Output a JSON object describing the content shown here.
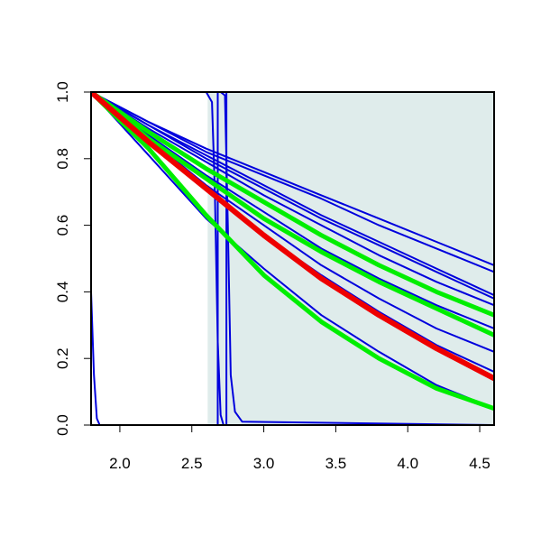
{
  "chart_data": {
    "type": "line",
    "title": "",
    "xlabel": "",
    "ylabel": "",
    "xlim": [
      1.8,
      4.6
    ],
    "ylim": [
      0.0,
      1.0
    ],
    "x_ticks": [
      2.0,
      2.5,
      3.0,
      3.5,
      4.0,
      4.5
    ],
    "x_tick_labels": [
      "2.0",
      "2.5",
      "3.0",
      "3.5",
      "4.0",
      "4.5"
    ],
    "y_ticks": [
      0.0,
      0.2,
      0.4,
      0.6,
      0.8,
      1.0
    ],
    "y_tick_labels": [
      "0.0",
      "0.2",
      "0.4",
      "0.6",
      "0.8",
      "1.0"
    ],
    "grid": false,
    "legend": "none",
    "shaded_region": {
      "x": [
        2.61,
        4.6
      ],
      "color": "#dfeceb"
    },
    "colors": {
      "blue": "#0000dd",
      "green": "#00ee00",
      "red": "#ee0000"
    },
    "series": [
      {
        "color": "blue",
        "x": [
          1.8,
          2.2,
          2.6,
          3.0,
          3.4,
          3.8,
          4.2,
          4.6
        ],
        "y": [
          1.0,
          0.91,
          0.83,
          0.76,
          0.69,
          0.62,
          0.55,
          0.48
        ]
      },
      {
        "color": "blue",
        "x": [
          1.8,
          2.2,
          2.6,
          3.0,
          3.4,
          3.8,
          4.2,
          4.6
        ],
        "y": [
          1.0,
          0.91,
          0.82,
          0.75,
          0.68,
          0.6,
          0.53,
          0.46
        ]
      },
      {
        "color": "blue",
        "x": [
          1.8,
          2.2,
          2.6,
          3.0,
          3.4,
          3.8,
          4.2,
          4.6
        ],
        "y": [
          1.0,
          0.9,
          0.81,
          0.72,
          0.63,
          0.55,
          0.47,
          0.39
        ]
      },
      {
        "color": "blue",
        "x": [
          1.8,
          2.2,
          2.6,
          3.0,
          3.4,
          3.8,
          4.2,
          4.6
        ],
        "y": [
          1.0,
          0.9,
          0.8,
          0.71,
          0.62,
          0.54,
          0.46,
          0.38
        ]
      },
      {
        "color": "blue",
        "x": [
          1.8,
          2.2,
          2.6,
          3.0,
          3.4,
          3.8,
          4.2,
          4.6
        ],
        "y": [
          1.0,
          0.89,
          0.79,
          0.69,
          0.6,
          0.51,
          0.43,
          0.36
        ]
      },
      {
        "color": "blue",
        "x": [
          1.8,
          2.2,
          2.6,
          3.0,
          3.4,
          3.8,
          4.2,
          4.6
        ],
        "y": [
          1.0,
          0.88,
          0.77,
          0.67,
          0.57,
          0.48,
          0.4,
          0.33
        ]
      },
      {
        "color": "blue",
        "x": [
          1.8,
          2.2,
          2.6,
          3.0,
          3.4,
          3.8,
          4.2,
          4.6
        ],
        "y": [
          1.0,
          0.87,
          0.75,
          0.64,
          0.53,
          0.44,
          0.36,
          0.29
        ]
      },
      {
        "color": "blue",
        "x": [
          1.8,
          2.2,
          2.6,
          3.0,
          3.4,
          3.8,
          4.2,
          4.6
        ],
        "y": [
          1.0,
          0.86,
          0.72,
          0.6,
          0.48,
          0.38,
          0.29,
          0.22
        ]
      },
      {
        "color": "blue",
        "x": [
          1.8,
          2.2,
          2.6,
          3.0,
          3.4,
          3.8,
          4.2,
          4.6
        ],
        "y": [
          1.0,
          0.85,
          0.71,
          0.57,
          0.45,
          0.34,
          0.24,
          0.16
        ]
      },
      {
        "color": "blue",
        "x": [
          1.8,
          2.2,
          2.6,
          3.0,
          3.4,
          3.8,
          4.2,
          4.6
        ],
        "y": [
          1.0,
          0.81,
          0.62,
          0.47,
          0.33,
          0.22,
          0.12,
          0.05
        ]
      },
      {
        "color": "blue",
        "x": [
          1.8,
          1.82,
          1.84,
          1.86,
          4.6
        ],
        "y": [
          0.4,
          0.15,
          0.02,
          0.0,
          0.0
        ]
      },
      {
        "color": "blue",
        "x": [
          1.8,
          2.6,
          2.64,
          2.66,
          2.68,
          2.7,
          2.72,
          4.6
        ],
        "y": [
          1.0,
          1.0,
          0.97,
          0.7,
          0.25,
          0.03,
          0.0,
          0.0
        ]
      },
      {
        "color": "blue",
        "x": [
          1.8,
          2.65,
          2.68,
          2.68,
          2.7,
          2.7,
          4.6
        ],
        "y": [
          1.0,
          1.0,
          1.0,
          0.0,
          0.0,
          0.0,
          0.0
        ]
      },
      {
        "color": "blue",
        "x": [
          1.8,
          2.7,
          2.73,
          2.75,
          2.77,
          2.8,
          2.85,
          4.6
        ],
        "y": [
          1.0,
          1.0,
          0.99,
          0.6,
          0.15,
          0.04,
          0.01,
          0.0
        ]
      },
      {
        "color": "blue",
        "x": [
          1.8,
          2.74,
          2.74,
          2.76,
          4.6
        ],
        "y": [
          1.0,
          1.0,
          0.0,
          0.0,
          0.0
        ]
      },
      {
        "color": "green",
        "x": [
          1.8,
          2.2,
          2.6,
          3.0,
          3.4,
          3.8,
          4.2,
          4.6
        ],
        "y": [
          1.0,
          0.88,
          0.77,
          0.67,
          0.57,
          0.48,
          0.4,
          0.33
        ]
      },
      {
        "color": "green",
        "x": [
          1.8,
          2.2,
          2.6,
          3.0,
          3.4,
          3.8,
          4.2,
          4.6
        ],
        "y": [
          1.0,
          0.86,
          0.74,
          0.62,
          0.52,
          0.43,
          0.35,
          0.27
        ]
      },
      {
        "color": "green",
        "x": [
          1.8,
          2.2,
          2.6,
          3.0,
          3.4,
          3.8,
          4.2,
          4.6
        ],
        "y": [
          1.0,
          0.83,
          0.63,
          0.45,
          0.31,
          0.2,
          0.11,
          0.05
        ]
      },
      {
        "color": "red",
        "x": [
          1.8,
          2.2,
          2.6,
          3.0,
          3.4,
          3.8,
          4.2,
          4.6
        ],
        "y": [
          1.0,
          0.85,
          0.71,
          0.57,
          0.44,
          0.33,
          0.23,
          0.14
        ]
      }
    ]
  }
}
